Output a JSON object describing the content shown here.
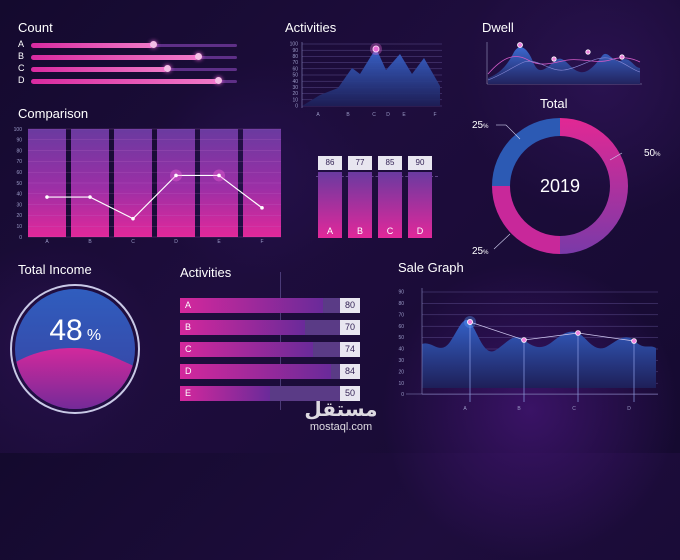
{
  "count": {
    "title": "Count",
    "items": [
      {
        "label": "A",
        "value": 0.59
      },
      {
        "label": "B",
        "value": 0.81
      },
      {
        "label": "C",
        "value": 0.66
      },
      {
        "label": "D",
        "value": 0.91
      }
    ]
  },
  "activities_top": {
    "title": "Activities",
    "y_ticks": [
      "100",
      "90",
      "80",
      "70",
      "60",
      "50",
      "40",
      "30",
      "20",
      "10",
      "0"
    ],
    "x_labels": [
      "A",
      "B",
      "C",
      "D",
      "E",
      "F"
    ]
  },
  "dwell": {
    "title": "Dwell"
  },
  "comparison": {
    "title": "Comparison",
    "y_ticks": [
      "100",
      "90",
      "80",
      "70",
      "60",
      "50",
      "40",
      "30",
      "20",
      "10",
      "0"
    ],
    "categories": [
      "A",
      "B",
      "C",
      "D",
      "E",
      "F"
    ],
    "values": [
      37,
      37,
      17,
      57,
      57,
      27
    ]
  },
  "mini_bars": {
    "items": [
      {
        "label": "A",
        "value": "86"
      },
      {
        "label": "B",
        "value": "77"
      },
      {
        "label": "C",
        "value": "85"
      },
      {
        "label": "D",
        "value": "90"
      }
    ]
  },
  "total": {
    "title": "Total",
    "center": "2019",
    "pct_top_left": "25",
    "pct_right": "50",
    "pct_bottom_left": "25",
    "pct_sign": "%"
  },
  "total_income": {
    "title": "Total Income",
    "value": "48",
    "pct_sign": "%"
  },
  "activities_bottom": {
    "title": "Activities",
    "items": [
      {
        "label": "A",
        "value": "80"
      },
      {
        "label": "B",
        "value": "70"
      },
      {
        "label": "C",
        "value": "74"
      },
      {
        "label": "D",
        "value": "84"
      },
      {
        "label": "E",
        "value": "50"
      }
    ]
  },
  "sale_graph": {
    "title": "Sale Graph",
    "y_ticks": [
      "90",
      "80",
      "70",
      "60",
      "50",
      "40",
      "30",
      "20",
      "10",
      "0"
    ],
    "x_labels": [
      "A",
      "B",
      "C",
      "D"
    ]
  },
  "watermark": {
    "arabic": "مستقل",
    "latin": "mostaql.com"
  },
  "colors": {
    "accent_pink": "#e0289e",
    "accent_purple": "#7a3aa8",
    "accent_blue": "#2e4a9e"
  }
}
